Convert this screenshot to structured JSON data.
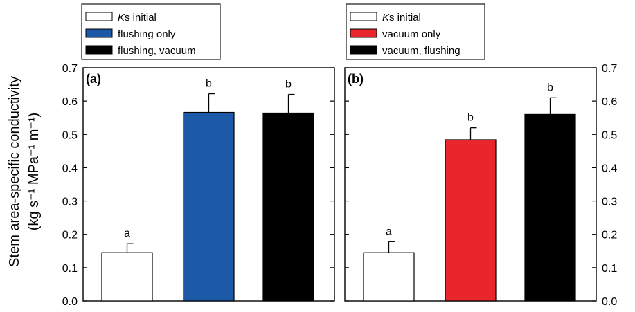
{
  "ylabel_line1": "Stem area-specific conductivity",
  "ylabel_line2": "(kg s⁻¹ MPa⁻¹ m⁻¹)",
  "chart_data": [
    {
      "type": "bar",
      "panel_label": "(a)",
      "categories": [
        "Ks initial",
        "flushing only",
        "flushing, vacuum"
      ],
      "values": [
        0.145,
        0.566,
        0.564
      ],
      "errors": [
        0.027,
        0.056,
        0.056
      ],
      "annotations": [
        "a",
        "b",
        "b"
      ],
      "colors": [
        "#ffffff",
        "#1c5aa8",
        "#000000"
      ],
      "legend": [
        {
          "label_italic": "K",
          "label": "s initial",
          "color": "#ffffff"
        },
        {
          "label_italic": "",
          "label": "flushing only",
          "color": "#1c5aa8"
        },
        {
          "label_italic": "",
          "label": "flushing, vacuum",
          "color": "#000000"
        }
      ],
      "ylim": [
        0,
        0.7
      ],
      "yticks": [
        "0.0",
        "0.1",
        "0.2",
        "0.3",
        "0.4",
        "0.5",
        "0.6",
        "0.7"
      ],
      "y_axis_side": "left",
      "grid": false
    },
    {
      "type": "bar",
      "panel_label": "(b)",
      "categories": [
        "Ks initial",
        "vacuum only",
        "vacuum, flushing"
      ],
      "values": [
        0.145,
        0.484,
        0.56
      ],
      "errors": [
        0.033,
        0.036,
        0.05
      ],
      "annotations": [
        "a",
        "b",
        "b"
      ],
      "colors": [
        "#ffffff",
        "#e8262b",
        "#000000"
      ],
      "legend": [
        {
          "label_italic": "K",
          "label": "s initial",
          "color": "#ffffff"
        },
        {
          "label_italic": "",
          "label": "vacuum only",
          "color": "#e8262b"
        },
        {
          "label_italic": "",
          "label": "vacuum, flushing",
          "color": "#000000"
        }
      ],
      "ylim": [
        0,
        0.7
      ],
      "yticks": [
        "0.0",
        "0.1",
        "0.2",
        "0.3",
        "0.4",
        "0.5",
        "0.6",
        "0.7"
      ],
      "y_axis_side": "right",
      "grid": false
    }
  ]
}
